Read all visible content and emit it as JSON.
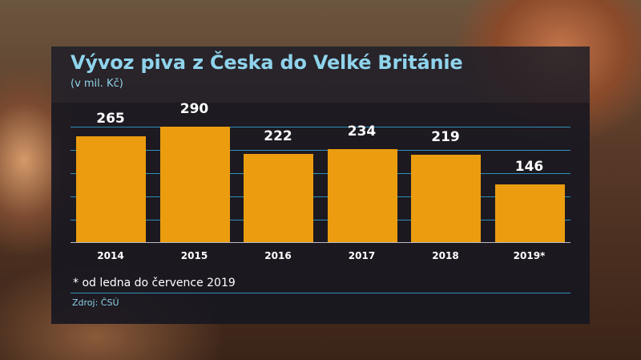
{
  "chart_data": {
    "type": "bar",
    "title": "Vývoz piva z Česka do Velké Británie",
    "subtitle": "(v mil. Kč)",
    "categories": [
      "2014",
      "2015",
      "2016",
      "2017",
      "2018",
      "2019*"
    ],
    "values": [
      265,
      290,
      222,
      234,
      219,
      146
    ],
    "data_labels": [
      "265",
      "290",
      "222",
      "234",
      "219",
      "146"
    ],
    "xlabel": "",
    "ylabel": "mil. Kč",
    "ylim": [
      0,
      300
    ],
    "grid": true,
    "legend": null,
    "annotations": [
      "* od ledna do července 2019",
      "Zdroj: ČSÚ"
    ],
    "bar_color": "#eb9d0f"
  },
  "header": {
    "title": "Vývoz piva z Česka do Velké Británie",
    "subtitle": "(v mil. Kč)"
  },
  "footer": {
    "note": "* od ledna do července 2019",
    "source": "Zdroj: ČSÚ"
  },
  "colors": {
    "title": "#8fd3ec",
    "bar": "#eb9d0f",
    "grid": "#2f8fb8",
    "panel": "#16161f"
  }
}
